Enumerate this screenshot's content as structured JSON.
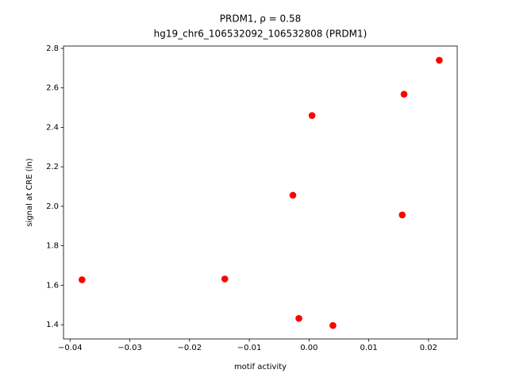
{
  "chart_data": {
    "type": "scatter",
    "title": "PRDM1, ρ = 0.58",
    "subtitle": "hg19_chr6_106532092_106532808 (PRDM1)",
    "x_label": "motif activity",
    "y_label": "signal at CRE (ln)",
    "color": "#ff0000",
    "x": [
      -0.038,
      -0.0141,
      -0.0027,
      -0.0017,
      0.0005,
      0.004,
      0.0156,
      0.0159,
      0.0218
    ],
    "y": [
      1.628,
      1.632,
      2.056,
      1.432,
      2.46,
      1.396,
      1.956,
      2.568,
      2.74
    ],
    "xlim": [
      -0.0411,
      0.0248
    ],
    "ylim": [
      1.328,
      2.812
    ],
    "xticks": [
      {
        "value": -0.04,
        "label": "−0.04"
      },
      {
        "value": -0.03,
        "label": "−0.03"
      },
      {
        "value": -0.02,
        "label": "−0.02"
      },
      {
        "value": -0.01,
        "label": "−0.01"
      },
      {
        "value": 0,
        "label": "0.00"
      },
      0.01,
      0.02
    ],
    "yticks": [
      1.4,
      1.6,
      1.8,
      {
        "value": 2,
        "label": "2.0"
      },
      2.2,
      2.4,
      2.6,
      2.8
    ]
  }
}
